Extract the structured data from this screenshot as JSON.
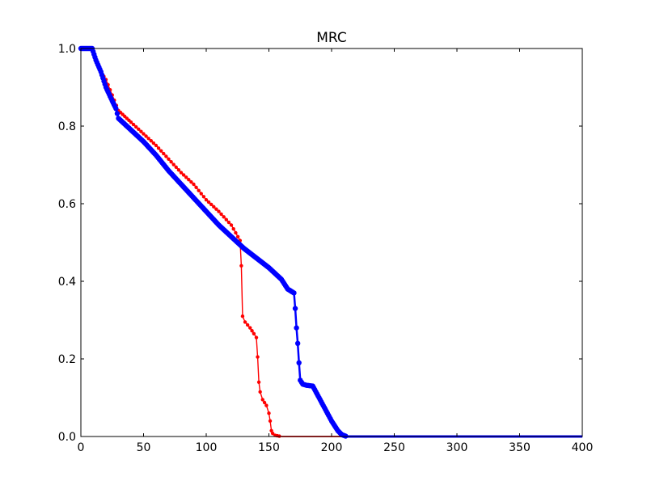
{
  "chart_data": {
    "type": "line",
    "title": "MRC",
    "xlabel": "",
    "ylabel": "",
    "xlim": [
      0,
      400
    ],
    "ylim": [
      0.0,
      1.0
    ],
    "xticks": [
      0,
      50,
      100,
      150,
      200,
      250,
      300,
      350,
      400
    ],
    "xtick_labels": [
      "0",
      "50",
      "100",
      "150",
      "200",
      "250",
      "300",
      "350",
      "400"
    ],
    "yticks": [
      0.0,
      0.2,
      0.4,
      0.6,
      0.8,
      1.0
    ],
    "ytick_labels": [
      "0.0",
      "0.2",
      "0.4",
      "0.6",
      "0.8",
      "1.0"
    ],
    "grid": false,
    "legend": false,
    "series": [
      {
        "color": "#ff0000",
        "marker": "dot",
        "points": [
          [
            0,
            1.0
          ],
          [
            8,
            1.0
          ],
          [
            10,
            0.985
          ],
          [
            15,
            0.945
          ],
          [
            20,
            0.92
          ],
          [
            25,
            0.88
          ],
          [
            30,
            0.84
          ],
          [
            35,
            0.825
          ],
          [
            40,
            0.81
          ],
          [
            50,
            0.78
          ],
          [
            60,
            0.75
          ],
          [
            70,
            0.715
          ],
          [
            80,
            0.68
          ],
          [
            90,
            0.65
          ],
          [
            100,
            0.61
          ],
          [
            110,
            0.58
          ],
          [
            120,
            0.545
          ],
          [
            127,
            0.505
          ],
          [
            128,
            0.44
          ],
          [
            129,
            0.31
          ],
          [
            131,
            0.295
          ],
          [
            135,
            0.28
          ],
          [
            138,
            0.265
          ],
          [
            140,
            0.255
          ],
          [
            141,
            0.205
          ],
          [
            142,
            0.14
          ],
          [
            143,
            0.115
          ],
          [
            145,
            0.095
          ],
          [
            148,
            0.08
          ],
          [
            150,
            0.06
          ],
          [
            151,
            0.04
          ],
          [
            152,
            0.015
          ],
          [
            153,
            0.008
          ],
          [
            155,
            0.003
          ],
          [
            160,
            0.0
          ],
          [
            210,
            0.0
          ],
          [
            400,
            0.0
          ]
        ]
      },
      {
        "color": "#0000ff",
        "marker": "dot",
        "points": [
          [
            0,
            1.0
          ],
          [
            9,
            1.0
          ],
          [
            12,
            0.97
          ],
          [
            16,
            0.94
          ],
          [
            20,
            0.9
          ],
          [
            25,
            0.865
          ],
          [
            28,
            0.845
          ],
          [
            30,
            0.82
          ],
          [
            35,
            0.805
          ],
          [
            40,
            0.79
          ],
          [
            50,
            0.76
          ],
          [
            60,
            0.725
          ],
          [
            70,
            0.685
          ],
          [
            80,
            0.65
          ],
          [
            90,
            0.615
          ],
          [
            100,
            0.58
          ],
          [
            110,
            0.545
          ],
          [
            120,
            0.515
          ],
          [
            130,
            0.485
          ],
          [
            140,
            0.46
          ],
          [
            150,
            0.435
          ],
          [
            160,
            0.405
          ],
          [
            165,
            0.38
          ],
          [
            170,
            0.37
          ],
          [
            171,
            0.33
          ],
          [
            172,
            0.28
          ],
          [
            173,
            0.24
          ],
          [
            174,
            0.19
          ],
          [
            175,
            0.145
          ],
          [
            177,
            0.135
          ],
          [
            180,
            0.132
          ],
          [
            185,
            0.13
          ],
          [
            190,
            0.1
          ],
          [
            195,
            0.07
          ],
          [
            200,
            0.04
          ],
          [
            205,
            0.015
          ],
          [
            208,
            0.005
          ],
          [
            212,
            0.0
          ],
          [
            400,
            0.0
          ]
        ]
      }
    ]
  }
}
